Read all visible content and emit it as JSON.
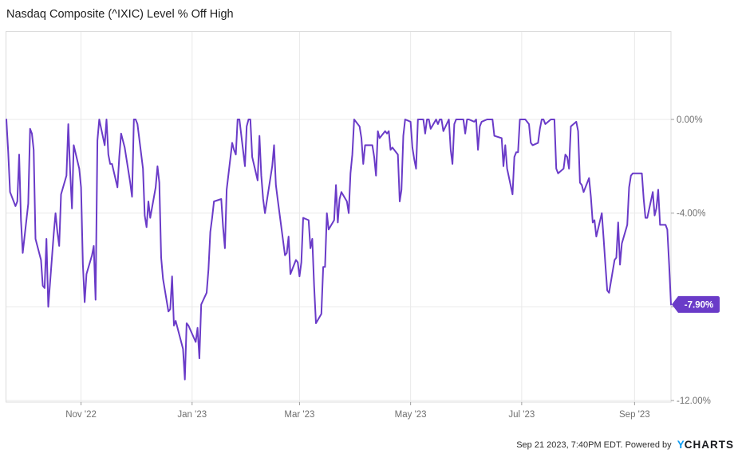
{
  "page": {
    "title": "Nasdaq Composite (^IXIC) Level % Off High"
  },
  "footer": {
    "timestamp": "Sep 21 2023, 7:40PM EDT.",
    "powered_by": "Powered by",
    "logo_y": "Y",
    "logo_rest": "CHARTS"
  },
  "colors": {
    "line": "#6a3bc8",
    "badge_bg": "#6a3bc8",
    "badge_text": "#ffffff",
    "grid": "#e9e9e9",
    "border": "#dcdcdc",
    "tick": "#9e9e9e",
    "axis_text": "#6f6f6f",
    "title_text": "#212121",
    "logo_blue": "#0c9cf3",
    "logo_dark": "#1a1b1f"
  },
  "chart_data": {
    "type": "line",
    "title": "Nasdaq Composite (^IXIC) Level % Off High",
    "series_name": "Nasdaq Composite Level % Off High",
    "unit": "percent",
    "grid": true,
    "legend": false,
    "xlim": [
      "2022-09-21",
      "2023-09-21"
    ],
    "ylim": [
      -12.1,
      3.7
    ],
    "y_ticks": [
      {
        "v": 0,
        "label": "0.00%"
      },
      {
        "v": -4,
        "label": "-4.00%"
      },
      {
        "v": -8,
        "label": "-8.00%"
      },
      {
        "v": -12,
        "label": "-12.00%"
      }
    ],
    "x_ticks": [
      {
        "date": "2022-11-01",
        "label": "Nov '22"
      },
      {
        "date": "2023-01-01",
        "label": "Jan '23"
      },
      {
        "date": "2023-03-01",
        "label": "Mar '23"
      },
      {
        "date": "2023-05-01",
        "label": "May '23"
      },
      {
        "date": "2023-07-01",
        "label": "Jul '23"
      },
      {
        "date": "2023-09-01",
        "label": "Sep '23"
      }
    ],
    "last_value_label": "-7.90%",
    "last_value": -7.9,
    "points": [
      [
        "2022-09-21",
        0.0
      ],
      [
        "2022-09-22",
        -1.4
      ],
      [
        "2022-09-23",
        -3.1
      ],
      [
        "2022-09-26",
        -3.7
      ],
      [
        "2022-09-27",
        -3.5
      ],
      [
        "2022-09-28",
        -1.5
      ],
      [
        "2022-09-29",
        -4.3
      ],
      [
        "2022-09-30",
        -5.7
      ],
      [
        "2022-10-03",
        -3.6
      ],
      [
        "2022-10-04",
        -0.4
      ],
      [
        "2022-10-05",
        -0.6
      ],
      [
        "2022-10-06",
        -1.3
      ],
      [
        "2022-10-07",
        -5.1
      ],
      [
        "2022-10-10",
        -6.0
      ],
      [
        "2022-10-11",
        -7.1
      ],
      [
        "2022-10-12",
        -7.2
      ],
      [
        "2022-10-13",
        -5.1
      ],
      [
        "2022-10-14",
        -8.0
      ],
      [
        "2022-10-17",
        -4.9
      ],
      [
        "2022-10-18",
        -4.0
      ],
      [
        "2022-10-19",
        -4.8
      ],
      [
        "2022-10-20",
        -5.4
      ],
      [
        "2022-10-21",
        -3.2
      ],
      [
        "2022-10-24",
        -2.4
      ],
      [
        "2022-10-25",
        -0.2
      ],
      [
        "2022-10-26",
        -2.2
      ],
      [
        "2022-10-27",
        -3.8
      ],
      [
        "2022-10-28",
        -1.1
      ],
      [
        "2022-10-31",
        -2.1
      ],
      [
        "2022-11-01",
        -2.9
      ],
      [
        "2022-11-02",
        -6.2
      ],
      [
        "2022-11-03",
        -7.8
      ],
      [
        "2022-11-04",
        -6.6
      ],
      [
        "2022-11-07",
        -5.8
      ],
      [
        "2022-11-08",
        -5.4
      ],
      [
        "2022-11-09",
        -7.7
      ],
      [
        "2022-11-10",
        -0.9
      ],
      [
        "2022-11-11",
        0.0
      ],
      [
        "2022-11-14",
        -1.1
      ],
      [
        "2022-11-15",
        0.0
      ],
      [
        "2022-11-16",
        -1.5
      ],
      [
        "2022-11-17",
        -1.9
      ],
      [
        "2022-11-18",
        -1.9
      ],
      [
        "2022-11-21",
        -2.9
      ],
      [
        "2022-11-22",
        -1.6
      ],
      [
        "2022-11-23",
        -0.6
      ],
      [
        "2022-11-25",
        -1.2
      ],
      [
        "2022-11-28",
        -2.7
      ],
      [
        "2022-11-29",
        -3.3
      ],
      [
        "2022-11-30",
        0.0
      ],
      [
        "2022-12-01",
        0.0
      ],
      [
        "2022-12-02",
        -0.2
      ],
      [
        "2022-12-05",
        -2.1
      ],
      [
        "2022-12-06",
        -4.1
      ],
      [
        "2022-12-07",
        -4.6
      ],
      [
        "2022-12-08",
        -3.5
      ],
      [
        "2022-12-09",
        -4.2
      ],
      [
        "2022-12-12",
        -2.9
      ],
      [
        "2022-12-13",
        -2.0
      ],
      [
        "2022-12-14",
        -2.7
      ],
      [
        "2022-12-15",
        -5.9
      ],
      [
        "2022-12-16",
        -6.8
      ],
      [
        "2022-12-19",
        -8.2
      ],
      [
        "2022-12-20",
        -8.1
      ],
      [
        "2022-12-21",
        -6.7
      ],
      [
        "2022-12-22",
        -8.8
      ],
      [
        "2022-12-23",
        -8.6
      ],
      [
        "2022-12-27",
        -9.8
      ],
      [
        "2022-12-28",
        -11.1
      ],
      [
        "2022-12-29",
        -8.7
      ],
      [
        "2022-12-30",
        -8.8
      ],
      [
        "2023-01-03",
        -9.5
      ],
      [
        "2023-01-04",
        -8.9
      ],
      [
        "2023-01-05",
        -10.2
      ],
      [
        "2023-01-06",
        -7.9
      ],
      [
        "2023-01-09",
        -7.4
      ],
      [
        "2023-01-10",
        -6.4
      ],
      [
        "2023-01-11",
        -4.8
      ],
      [
        "2023-01-12",
        -4.2
      ],
      [
        "2023-01-13",
        -3.5
      ],
      [
        "2023-01-17",
        -3.4
      ],
      [
        "2023-01-18",
        -4.6
      ],
      [
        "2023-01-19",
        -5.5
      ],
      [
        "2023-01-20",
        -3.0
      ],
      [
        "2023-01-23",
        -1.0
      ],
      [
        "2023-01-24",
        -1.3
      ],
      [
        "2023-01-25",
        -1.5
      ],
      [
        "2023-01-26",
        0.0
      ],
      [
        "2023-01-27",
        0.0
      ],
      [
        "2023-01-30",
        -2.0
      ],
      [
        "2023-01-31",
        -0.3
      ],
      [
        "2023-02-01",
        0.0
      ],
      [
        "2023-02-02",
        0.0
      ],
      [
        "2023-02-03",
        -1.6
      ],
      [
        "2023-02-06",
        -2.6
      ],
      [
        "2023-02-07",
        -0.7
      ],
      [
        "2023-02-08",
        -2.4
      ],
      [
        "2023-02-09",
        -3.4
      ],
      [
        "2023-02-10",
        -4.0
      ],
      [
        "2023-02-13",
        -2.5
      ],
      [
        "2023-02-14",
        -2.0
      ],
      [
        "2023-02-15",
        -1.1
      ],
      [
        "2023-02-16",
        -2.8
      ],
      [
        "2023-02-17",
        -3.4
      ],
      [
        "2023-02-21",
        -5.8
      ],
      [
        "2023-02-22",
        -5.7
      ],
      [
        "2023-02-23",
        -5.0
      ],
      [
        "2023-02-24",
        -6.6
      ],
      [
        "2023-02-27",
        -6.0
      ],
      [
        "2023-02-28",
        -6.1
      ],
      [
        "2023-03-01",
        -6.7
      ],
      [
        "2023-03-02",
        -6.1
      ],
      [
        "2023-03-03",
        -4.2
      ],
      [
        "2023-03-06",
        -4.3
      ],
      [
        "2023-03-07",
        -5.5
      ],
      [
        "2023-03-08",
        -5.1
      ],
      [
        "2023-03-09",
        -7.1
      ],
      [
        "2023-03-10",
        -8.7
      ],
      [
        "2023-03-13",
        -8.3
      ],
      [
        "2023-03-14",
        -6.3
      ],
      [
        "2023-03-15",
        -6.3
      ],
      [
        "2023-03-16",
        -4.0
      ],
      [
        "2023-03-17",
        -4.7
      ],
      [
        "2023-03-20",
        -4.3
      ],
      [
        "2023-03-21",
        -2.8
      ],
      [
        "2023-03-22",
        -4.4
      ],
      [
        "2023-03-23",
        -3.4
      ],
      [
        "2023-03-24",
        -3.1
      ],
      [
        "2023-03-27",
        -3.5
      ],
      [
        "2023-03-28",
        -4.0
      ],
      [
        "2023-03-29",
        -2.3
      ],
      [
        "2023-03-30",
        -1.5
      ],
      [
        "2023-03-31",
        0.0
      ],
      [
        "2023-04-03",
        -0.3
      ],
      [
        "2023-04-04",
        -0.8
      ],
      [
        "2023-04-05",
        -1.9
      ],
      [
        "2023-04-06",
        -1.1
      ],
      [
        "2023-04-10",
        -1.1
      ],
      [
        "2023-04-11",
        -1.6
      ],
      [
        "2023-04-12",
        -2.4
      ],
      [
        "2023-04-13",
        -0.5
      ],
      [
        "2023-04-14",
        -0.8
      ],
      [
        "2023-04-17",
        -0.5
      ],
      [
        "2023-04-18",
        -0.6
      ],
      [
        "2023-04-19",
        -0.5
      ],
      [
        "2023-04-20",
        -1.3
      ],
      [
        "2023-04-21",
        -1.2
      ],
      [
        "2023-04-24",
        -1.5
      ],
      [
        "2023-04-25",
        -3.5
      ],
      [
        "2023-04-26",
        -3.0
      ],
      [
        "2023-04-27",
        -0.7
      ],
      [
        "2023-04-28",
        0.0
      ],
      [
        "2023-05-01",
        -0.1
      ],
      [
        "2023-05-02",
        -1.2
      ],
      [
        "2023-05-03",
        -1.7
      ],
      [
        "2023-05-04",
        -2.1
      ],
      [
        "2023-05-05",
        0.0
      ],
      [
        "2023-05-08",
        0.0
      ],
      [
        "2023-05-09",
        -0.6
      ],
      [
        "2023-05-10",
        0.0
      ],
      [
        "2023-05-11",
        0.0
      ],
      [
        "2023-05-12",
        -0.4
      ],
      [
        "2023-05-15",
        0.0
      ],
      [
        "2023-05-16",
        -0.2
      ],
      [
        "2023-05-17",
        0.0
      ],
      [
        "2023-05-18",
        0.0
      ],
      [
        "2023-05-19",
        -0.5
      ],
      [
        "2023-05-22",
        0.0
      ],
      [
        "2023-05-23",
        -1.3
      ],
      [
        "2023-05-24",
        -1.9
      ],
      [
        "2023-05-25",
        -0.2
      ],
      [
        "2023-05-26",
        0.0
      ],
      [
        "2023-05-30",
        0.0
      ],
      [
        "2023-05-31",
        -0.6
      ],
      [
        "2023-06-01",
        0.0
      ],
      [
        "2023-06-02",
        0.0
      ],
      [
        "2023-06-05",
        -0.1
      ],
      [
        "2023-06-06",
        0.0
      ],
      [
        "2023-06-07",
        -1.3
      ],
      [
        "2023-06-08",
        -0.3
      ],
      [
        "2023-06-09",
        -0.1
      ],
      [
        "2023-06-12",
        0.0
      ],
      [
        "2023-06-13",
        0.0
      ],
      [
        "2023-06-14",
        0.0
      ],
      [
        "2023-06-15",
        0.0
      ],
      [
        "2023-06-16",
        -0.7
      ],
      [
        "2023-06-20",
        -0.8
      ],
      [
        "2023-06-21",
        -2.0
      ],
      [
        "2023-06-22",
        -1.1
      ],
      [
        "2023-06-23",
        -2.1
      ],
      [
        "2023-06-26",
        -3.2
      ],
      [
        "2023-06-27",
        -1.6
      ],
      [
        "2023-06-28",
        -1.4
      ],
      [
        "2023-06-29",
        -1.4
      ],
      [
        "2023-06-30",
        0.0
      ],
      [
        "2023-07-03",
        0.0
      ],
      [
        "2023-07-05",
        -0.2
      ],
      [
        "2023-07-06",
        -1.0
      ],
      [
        "2023-07-07",
        -1.1
      ],
      [
        "2023-07-10",
        -1.0
      ],
      [
        "2023-07-11",
        -0.4
      ],
      [
        "2023-07-12",
        0.0
      ],
      [
        "2023-07-13",
        0.0
      ],
      [
        "2023-07-14",
        -0.2
      ],
      [
        "2023-07-17",
        0.0
      ],
      [
        "2023-07-18",
        0.0
      ],
      [
        "2023-07-19",
        0.0
      ],
      [
        "2023-07-20",
        -2.1
      ],
      [
        "2023-07-21",
        -2.3
      ],
      [
        "2023-07-24",
        -2.1
      ],
      [
        "2023-07-25",
        -1.5
      ],
      [
        "2023-07-26",
        -1.6
      ],
      [
        "2023-07-27",
        -2.1
      ],
      [
        "2023-07-28",
        -0.3
      ],
      [
        "2023-07-31",
        -0.1
      ],
      [
        "2023-08-01",
        -0.5
      ],
      [
        "2023-08-02",
        -2.7
      ],
      [
        "2023-08-03",
        -2.8
      ],
      [
        "2023-08-04",
        -3.1
      ],
      [
        "2023-08-07",
        -2.5
      ],
      [
        "2023-08-08",
        -3.3
      ],
      [
        "2023-08-09",
        -4.4
      ],
      [
        "2023-08-10",
        -4.3
      ],
      [
        "2023-08-11",
        -5.0
      ],
      [
        "2023-08-14",
        -4.0
      ],
      [
        "2023-08-15",
        -5.1
      ],
      [
        "2023-08-16",
        -6.2
      ],
      [
        "2023-08-17",
        -7.3
      ],
      [
        "2023-08-18",
        -7.4
      ],
      [
        "2023-08-21",
        -6.0
      ],
      [
        "2023-08-22",
        -5.9
      ],
      [
        "2023-08-23",
        -4.4
      ],
      [
        "2023-08-24",
        -6.2
      ],
      [
        "2023-08-25",
        -5.3
      ],
      [
        "2023-08-28",
        -4.5
      ],
      [
        "2023-08-29",
        -2.9
      ],
      [
        "2023-08-30",
        -2.4
      ],
      [
        "2023-08-31",
        -2.3
      ],
      [
        "2023-09-01",
        -2.3
      ],
      [
        "2023-09-05",
        -2.3
      ],
      [
        "2023-09-06",
        -3.4
      ],
      [
        "2023-09-07",
        -4.2
      ],
      [
        "2023-09-08",
        -4.2
      ],
      [
        "2023-09-11",
        -3.1
      ],
      [
        "2023-09-12",
        -4.1
      ],
      [
        "2023-09-13",
        -3.8
      ],
      [
        "2023-09-14",
        -3.0
      ],
      [
        "2023-09-15",
        -4.5
      ],
      [
        "2023-09-18",
        -4.5
      ],
      [
        "2023-09-19",
        -4.7
      ],
      [
        "2023-09-20",
        -6.2
      ],
      [
        "2023-09-21",
        -7.9
      ]
    ]
  }
}
